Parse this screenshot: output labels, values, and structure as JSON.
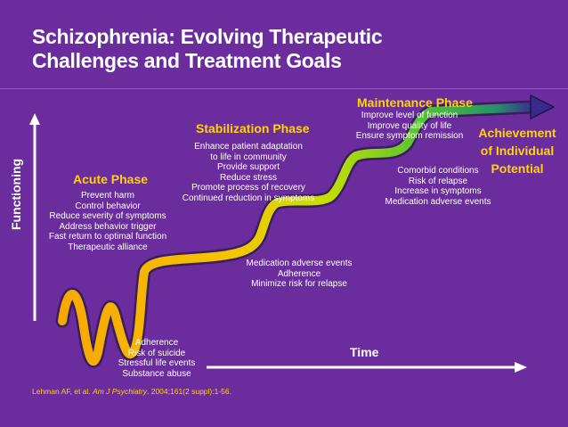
{
  "title_line1": "Schizophrenia: Evolving Therapeutic",
  "title_line2": "Challenges and Treatment Goals",
  "y_axis_label": "Functioning",
  "x_axis_label": "Time",
  "phases": {
    "acute": {
      "title": "Acute Phase",
      "goals": [
        "Prevent harm",
        "Control behavior",
        "Reduce severity of symptoms",
        "Address behavior trigger",
        "Fast return to optimal function",
        "Therapeutic alliance"
      ],
      "challenges": [
        "Adherence",
        "Risk of suicide",
        "Stressful life events",
        "Substance abuse"
      ]
    },
    "stabilization": {
      "title": "Stabilization Phase",
      "goals": [
        "Enhance patient adaptation",
        "to life in community",
        "Provide support",
        "Reduce stress",
        "Promote process of recovery",
        "Continued reduction in symptoms"
      ],
      "challenges": [
        "Medication adverse events",
        "Adherence",
        "Minimize risk for relapse"
      ]
    },
    "maintenance": {
      "title": "Maintenance Phase",
      "goals": [
        "Improve level of function",
        "Improve quality of life",
        "Ensure symptom remission"
      ],
      "challenges": [
        "Comorbid conditions",
        "Risk of relapse",
        "Increase in symptoms",
        "Medication adverse events"
      ]
    },
    "achievement": {
      "title_lines": [
        "Achievement",
        "of Individual",
        "Potential"
      ]
    }
  },
  "citation": {
    "authors": "Lehman AF, et al.",
    "journal": "Am J Psychiatry",
    "details": ". 2004;161(2 suppl):1-56."
  },
  "colors": {
    "background": "#6b2d9e",
    "phase_title": "#ffd400",
    "curve_start": "#f7b500",
    "curve_mid": "#c8e000",
    "curve_end": "#2aa84a",
    "arrow_end": "#3a2a8c"
  }
}
